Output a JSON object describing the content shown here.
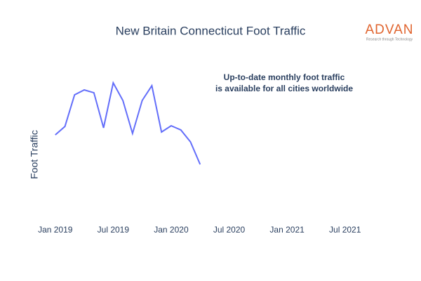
{
  "chart_data": {
    "type": "line",
    "title": "New Britain Connecticut Foot Traffic",
    "y_label": "Foot Traffic",
    "annotation": [
      "Up-to-date monthly foot traffic",
      "is available for all cities worldwide"
    ],
    "logo": {
      "name": "ADVAN",
      "tagline": "Research through Technology"
    },
    "x": [
      "2019-01",
      "2019-02",
      "2019-03",
      "2019-04",
      "2019-05",
      "2019-06",
      "2019-07",
      "2019-08",
      "2019-09",
      "2019-10",
      "2019-11",
      "2019-12",
      "2020-01",
      "2020-02",
      "2020-03",
      "2020-04"
    ],
    "series": [
      {
        "name": "Foot Traffic",
        "color": "#636efa",
        "values": [
          54,
          60,
          82.5,
          86,
          84,
          59,
          91,
          78.5,
          55,
          78.5,
          89,
          56,
          60.5,
          57.5,
          49,
          33
        ]
      }
    ],
    "xlim": [
      "2018-12",
      "2021-10"
    ],
    "xticks": [
      {
        "value": "2019-01",
        "label": "Jan 2019"
      },
      {
        "value": "2019-07",
        "label": "Jul 2019"
      },
      {
        "value": "2020-01",
        "label": "Jan 2020"
      },
      {
        "value": "2020-07",
        "label": "Jul 2020"
      },
      {
        "value": "2021-01",
        "label": "Jan 2021"
      },
      {
        "value": "2021-07",
        "label": "Jul 2021"
      }
    ],
    "ylim": [
      0,
      105
    ]
  }
}
